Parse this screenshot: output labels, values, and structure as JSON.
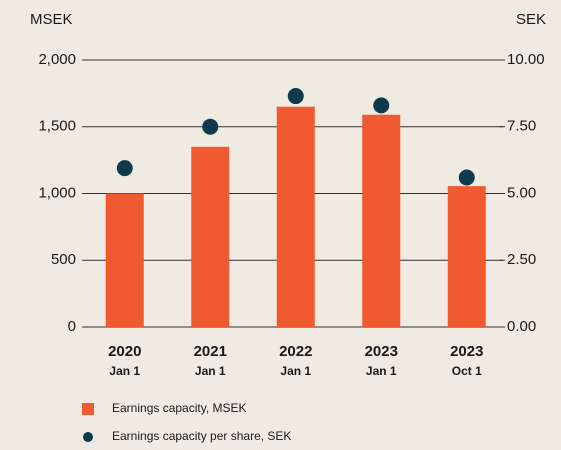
{
  "chart_data": {
    "type": "bar+scatter",
    "y_label": "MSEK",
    "y2_label": "SEK",
    "categories": [
      "2020",
      "2021",
      "2022",
      "2023",
      "2023"
    ],
    "category_sublabels": [
      "Jan 1",
      "Jan 1",
      "Jan 1",
      "Jan 1",
      "Oct 1"
    ],
    "series": [
      {
        "name": "Earnings capacity, MSEK",
        "type": "bar",
        "color": "#f05a30",
        "values": [
          1000,
          1350,
          1650,
          1590,
          1055
        ]
      },
      {
        "name": "Earnings capacity per share, SEK",
        "type": "scatter",
        "axis": "y2",
        "color": "#0f3a4e",
        "values": [
          5.95,
          7.5,
          8.65,
          8.3,
          5.6
        ]
      }
    ],
    "ylim": [
      0,
      2000
    ],
    "yticks": [
      0,
      500,
      {
        "value": 1000,
        "label": "1,000"
      },
      {
        "value": 1500,
        "label": "1,500"
      },
      {
        "value": 2000,
        "label": "2,000"
      }
    ],
    "y2lim": [
      0,
      10
    ],
    "y2ticks": [
      {
        "value": 0,
        "label": "0.00"
      },
      {
        "value": 2.5,
        "label": "2.50"
      },
      {
        "value": 5,
        "label": "5.00"
      },
      {
        "value": 7.5,
        "label": "7.50"
      },
      {
        "value": 10,
        "label": "10.00"
      }
    ],
    "grid": true,
    "legend": "bottom"
  }
}
